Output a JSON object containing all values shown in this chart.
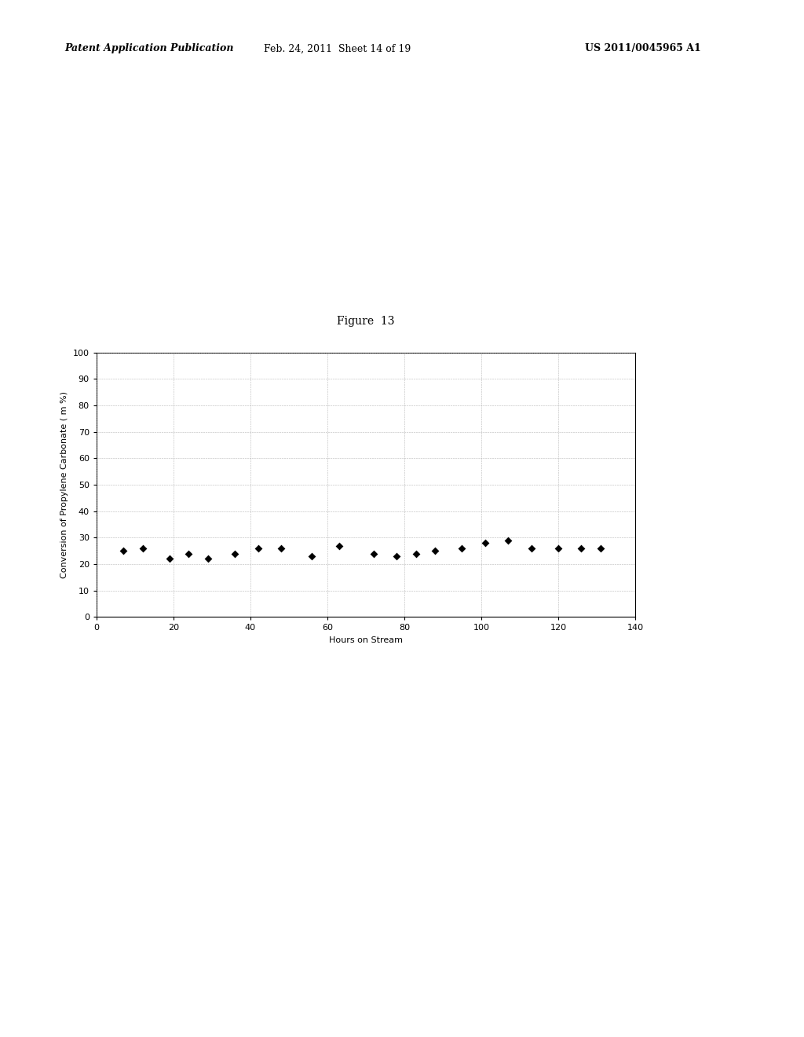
{
  "title": "Figure  13",
  "xlabel": "Hours on Stream",
  "ylabel": "Conversion of Propylene Carbonate ( m %)",
  "xlim": [
    0,
    140
  ],
  "ylim": [
    0,
    100
  ],
  "xticks": [
    0,
    20,
    40,
    60,
    80,
    100,
    120,
    140
  ],
  "yticks": [
    0,
    10,
    20,
    30,
    40,
    50,
    60,
    70,
    80,
    90,
    100
  ],
  "data_x": [
    7,
    12,
    19,
    24,
    29,
    36,
    42,
    48,
    56,
    63,
    72,
    78,
    83,
    88,
    95,
    101,
    107,
    113,
    120,
    126,
    131
  ],
  "data_y": [
    25,
    26,
    22,
    24,
    22,
    24,
    26,
    26,
    23,
    27,
    24,
    23,
    24,
    25,
    26,
    28,
    29,
    26,
    26,
    26,
    26
  ],
  "marker_color": "black",
  "marker": "D",
  "marker_size": 5,
  "grid_color": "#999999",
  "bg_color": "white",
  "title_fontsize": 10,
  "label_fontsize": 8,
  "tick_fontsize": 8,
  "header_left": "Patent Application Publication",
  "header_mid": "Feb. 24, 2011  Sheet 14 of 19",
  "header_right": "US 2011/0045965 A1"
}
